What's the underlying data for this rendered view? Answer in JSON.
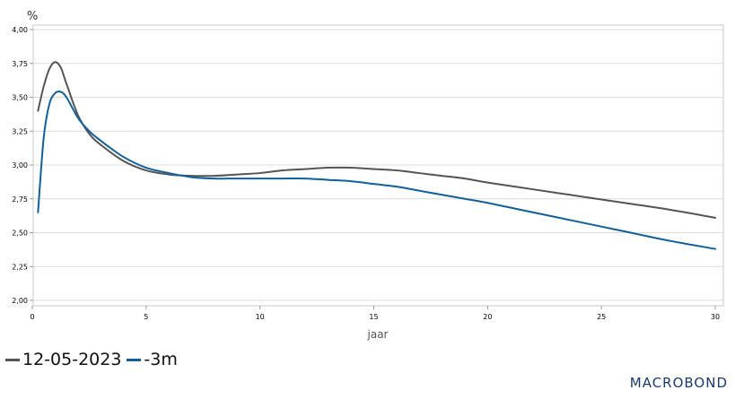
{
  "chart_data": {
    "type": "line",
    "unit": "%",
    "xlabel": "jaar",
    "xlim": [
      0,
      30
    ],
    "ylim": [
      2.0,
      4.0
    ],
    "x_ticks": [
      "0",
      "5",
      "10",
      "15",
      "20",
      "25",
      "30"
    ],
    "y_ticks": [
      "2,00",
      "2,25",
      "2,50",
      "2,75",
      "3,00",
      "3,25",
      "3,50",
      "3,75",
      "4,00"
    ],
    "grid": "horizontal",
    "legend_position": "bottom-left",
    "series": [
      {
        "name": "12-05-2023",
        "color": "#555555",
        "x": [
          0.25,
          0.5,
          0.75,
          1.0,
          1.25,
          1.5,
          2.0,
          2.5,
          3.0,
          4.0,
          5.0,
          6.0,
          7.0,
          8.0,
          9.0,
          10.0,
          11.0,
          12.0,
          13.0,
          14.0,
          15.0,
          16.0,
          17.0,
          18.0,
          19.0,
          20.0,
          22.0,
          24.0,
          26.0,
          28.0,
          30.0
        ],
        "values": [
          3.4,
          3.58,
          3.71,
          3.76,
          3.72,
          3.6,
          3.37,
          3.23,
          3.15,
          3.03,
          2.96,
          2.93,
          2.92,
          2.92,
          2.93,
          2.94,
          2.96,
          2.97,
          2.98,
          2.98,
          2.97,
          2.96,
          2.94,
          2.92,
          2.9,
          2.87,
          2.82,
          2.77,
          2.72,
          2.67,
          2.61
        ]
      },
      {
        "name": "-3m",
        "color": "#11609e",
        "x": [
          0.25,
          0.5,
          0.75,
          1.0,
          1.25,
          1.5,
          2.0,
          2.5,
          3.0,
          4.0,
          5.0,
          6.0,
          7.0,
          8.0,
          9.0,
          10.0,
          11.0,
          12.0,
          13.0,
          14.0,
          15.0,
          16.0,
          17.0,
          18.0,
          19.0,
          20.0,
          22.0,
          24.0,
          26.0,
          28.0,
          30.0
        ],
        "values": [
          2.65,
          3.2,
          3.45,
          3.53,
          3.54,
          3.5,
          3.35,
          3.25,
          3.18,
          3.06,
          2.98,
          2.94,
          2.91,
          2.9,
          2.9,
          2.9,
          2.9,
          2.9,
          2.89,
          2.88,
          2.86,
          2.84,
          2.81,
          2.78,
          2.75,
          2.72,
          2.65,
          2.58,
          2.51,
          2.44,
          2.38
        ]
      }
    ]
  },
  "brand": "MACROBOND"
}
